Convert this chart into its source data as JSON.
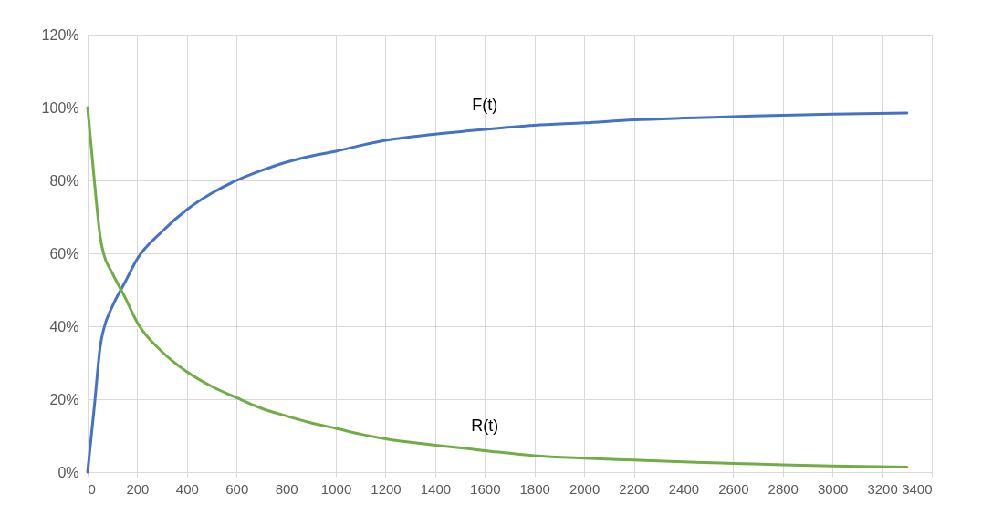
{
  "chart_data": {
    "type": "line",
    "x": [
      0,
      27,
      52,
      64,
      100,
      150,
      200,
      300,
      400,
      500,
      600,
      700,
      800,
      900,
      1000,
      1100,
      1200,
      1400,
      1600,
      1800,
      2000,
      2200,
      2400,
      2600,
      2800,
      3000,
      3300
    ],
    "series": [
      {
        "name": "F(t)",
        "color": "#4472c4",
        "values": [
          0,
          18,
          35,
          39,
          45.5,
          52,
          58.5,
          66,
          72,
          76.5,
          80,
          82.7,
          85,
          86.7,
          88,
          89.6,
          91,
          92.7,
          94,
          95.1,
          95.8,
          96.6,
          97.1,
          97.5,
          97.9,
          98.2,
          98.5
        ]
      },
      {
        "name": "R(t)",
        "color": "#70ad47",
        "values": [
          100,
          80,
          64,
          60,
          54.5,
          48,
          41,
          33,
          27.5,
          23.5,
          20.4,
          17.5,
          15.4,
          13.5,
          12,
          10.4,
          9.1,
          7.4,
          5.9,
          4.5,
          3.8,
          3.3,
          2.8,
          2.4,
          2.0,
          1.7,
          1.4
        ]
      }
    ],
    "xlim": [
      0,
      3400
    ],
    "xticks": [
      0,
      200,
      400,
      600,
      800,
      1000,
      1200,
      1400,
      1600,
      1800,
      2000,
      2200,
      2400,
      2600,
      2800,
      3000,
      3200,
      3400
    ],
    "ylim": [
      0,
      120
    ],
    "yticks": [
      {
        "value": 0,
        "label": "0%"
      },
      {
        "value": 20,
        "label": "20%"
      },
      {
        "value": 40,
        "label": "40%"
      },
      {
        "value": 60,
        "label": "60%"
      },
      {
        "value": 80,
        "label": "80%"
      },
      {
        "value": 100,
        "label": "100%"
      },
      {
        "value": 120,
        "label": "120%"
      }
    ],
    "grid": true,
    "legend": false,
    "marker": "none",
    "line_style": "solid"
  }
}
